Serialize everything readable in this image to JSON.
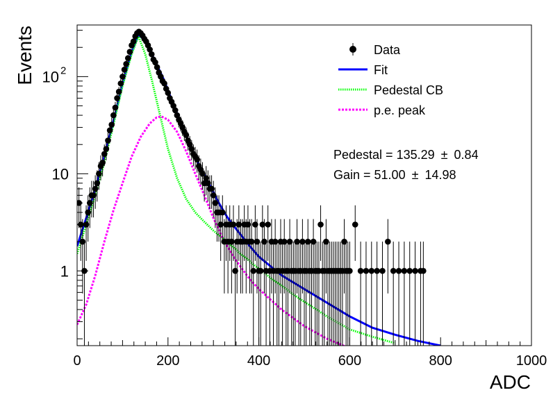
{
  "chart_data": {
    "type": "scatter",
    "title": "",
    "xlabel": "ADC",
    "ylabel": "Events",
    "xlim": [
      0,
      1000
    ],
    "ylim": [
      0.17,
      340
    ],
    "yscale": "log",
    "grid": false,
    "legend_position": "top-right",
    "x_ticks": [
      {
        "value": 0,
        "label": "0"
      },
      {
        "value": 200,
        "label": "200"
      },
      {
        "value": 400,
        "label": "400"
      },
      {
        "value": 600,
        "label": "600"
      },
      {
        "value": 800,
        "label": "800"
      },
      {
        "value": 1000,
        "label": "1000"
      }
    ],
    "y_ticks": [
      {
        "value": 1,
        "label": "1"
      },
      {
        "value": 10,
        "label": "10"
      },
      {
        "value": 100,
        "label": "10",
        "sup": "2"
      }
    ],
    "legend": [
      {
        "label": "Data",
        "marker": "point-errorbar",
        "color": "#000000"
      },
      {
        "label": "Fit",
        "marker": "solid-line",
        "color": "#0000ff"
      },
      {
        "label": "Pedestal CB",
        "marker": "dotted-line",
        "color": "#00ff00"
      },
      {
        "label": "p.e. peak",
        "marker": "dashed-line",
        "color": "#ff00ff"
      }
    ],
    "annotations": [
      {
        "text": "Pedestal = 135.29",
        "pm": "±",
        "value": "0.84"
      },
      {
        "text": "Gain = 51.00",
        "pm": "±",
        "value": "14.98"
      }
    ],
    "series": [
      {
        "name": "Data",
        "style": "points",
        "color": "#000000",
        "points": [
          [
            4,
            5
          ],
          [
            8,
            3
          ],
          [
            12,
            2
          ],
          [
            16,
            1
          ],
          [
            20,
            3
          ],
          [
            24,
            4
          ],
          [
            28,
            5
          ],
          [
            32,
            6
          ],
          [
            36,
            6
          ],
          [
            40,
            7
          ],
          [
            44,
            8
          ],
          [
            48,
            10
          ],
          [
            52,
            12
          ],
          [
            56,
            13
          ],
          [
            60,
            16
          ],
          [
            64,
            18
          ],
          [
            68,
            22
          ],
          [
            72,
            28
          ],
          [
            76,
            32
          ],
          [
            80,
            40
          ],
          [
            84,
            48
          ],
          [
            88,
            60
          ],
          [
            92,
            70
          ],
          [
            96,
            85
          ],
          [
            100,
            100
          ],
          [
            104,
            118
          ],
          [
            108,
            135
          ],
          [
            112,
            155
          ],
          [
            116,
            180
          ],
          [
            120,
            210
          ],
          [
            124,
            230
          ],
          [
            128,
            260
          ],
          [
            132,
            280
          ],
          [
            136,
            290
          ],
          [
            140,
            280
          ],
          [
            144,
            265
          ],
          [
            148,
            245
          ],
          [
            152,
            230
          ],
          [
            156,
            210
          ],
          [
            160,
            190
          ],
          [
            164,
            170
          ],
          [
            168,
            150
          ],
          [
            172,
            140
          ],
          [
            176,
            125
          ],
          [
            180,
            110
          ],
          [
            184,
            100
          ],
          [
            188,
            90
          ],
          [
            192,
            85
          ],
          [
            196,
            75
          ],
          [
            200,
            68
          ],
          [
            204,
            60
          ],
          [
            208,
            55
          ],
          [
            212,
            50
          ],
          [
            216,
            45
          ],
          [
            220,
            40
          ],
          [
            224,
            36
          ],
          [
            228,
            33
          ],
          [
            232,
            30
          ],
          [
            236,
            27
          ],
          [
            240,
            25
          ],
          [
            244,
            22
          ],
          [
            248,
            20
          ],
          [
            252,
            18
          ],
          [
            256,
            16
          ],
          [
            260,
            15
          ],
          [
            264,
            14
          ],
          [
            268,
            12
          ],
          [
            272,
            11
          ],
          [
            276,
            10
          ],
          [
            280,
            8
          ],
          [
            284,
            9
          ],
          [
            288,
            8
          ],
          [
            292,
            7
          ],
          [
            296,
            7
          ],
          [
            300,
            6
          ],
          [
            304,
            5
          ],
          [
            308,
            4
          ],
          [
            312,
            4
          ],
          [
            316,
            3
          ],
          [
            320,
            4
          ],
          [
            324,
            2
          ],
          [
            328,
            3
          ],
          [
            332,
            2
          ],
          [
            336,
            3
          ],
          [
            340,
            2
          ],
          [
            344,
            3
          ],
          [
            348,
            1
          ],
          [
            352,
            2
          ],
          [
            356,
            3
          ],
          [
            360,
            2
          ],
          [
            364,
            2
          ],
          [
            368,
            3
          ],
          [
            372,
            2
          ],
          [
            376,
            3
          ],
          [
            380,
            2
          ],
          [
            384,
            2
          ],
          [
            388,
            1
          ],
          [
            392,
            3
          ],
          [
            396,
            2
          ],
          [
            400,
            1
          ],
          [
            404,
            1
          ],
          [
            408,
            3
          ],
          [
            412,
            2
          ],
          [
            416,
            1
          ],
          [
            420,
            3
          ],
          [
            424,
            1
          ],
          [
            428,
            2
          ],
          [
            432,
            1
          ],
          [
            436,
            2
          ],
          [
            440,
            1
          ],
          [
            444,
            1
          ],
          [
            448,
            2
          ],
          [
            452,
            1
          ],
          [
            456,
            2
          ],
          [
            460,
            1
          ],
          [
            464,
            1
          ],
          [
            468,
            2
          ],
          [
            472,
            1
          ],
          [
            476,
            1
          ],
          [
            480,
            1
          ],
          [
            484,
            2
          ],
          [
            488,
            1
          ],
          [
            492,
            1
          ],
          [
            496,
            2
          ],
          [
            500,
            1
          ],
          [
            504,
            1
          ],
          [
            508,
            2
          ],
          [
            512,
            1
          ],
          [
            516,
            1
          ],
          [
            520,
            2
          ],
          [
            524,
            1
          ],
          [
            528,
            1
          ],
          [
            532,
            1
          ],
          [
            536,
            3
          ],
          [
            540,
            1
          ],
          [
            544,
            1
          ],
          [
            548,
            2
          ],
          [
            552,
            1
          ],
          [
            556,
            1
          ],
          [
            560,
            1
          ],
          [
            564,
            1
          ],
          [
            568,
            1
          ],
          [
            572,
            1
          ],
          [
            576,
            1
          ],
          [
            580,
            1
          ],
          [
            584,
            1
          ],
          [
            588,
            2
          ],
          [
            592,
            1
          ],
          [
            596,
            1
          ],
          [
            600,
            1
          ],
          [
            612,
            3
          ],
          [
            624,
            1
          ],
          [
            636,
            1
          ],
          [
            648,
            1
          ],
          [
            660,
            1
          ],
          [
            672,
            1
          ],
          [
            684,
            2
          ],
          [
            696,
            1
          ],
          [
            708,
            1
          ],
          [
            720,
            1
          ],
          [
            732,
            1
          ],
          [
            744,
            1
          ],
          [
            756,
            1
          ],
          [
            762,
            1
          ]
        ]
      },
      {
        "name": "Fit",
        "style": "solid",
        "color": "#0000ff",
        "points": [
          [
            0,
            1.8
          ],
          [
            20,
            3.5
          ],
          [
            40,
            7
          ],
          [
            60,
            15
          ],
          [
            80,
            35
          ],
          [
            100,
            85
          ],
          [
            120,
            180
          ],
          [
            135,
            270
          ],
          [
            150,
            235
          ],
          [
            170,
            150
          ],
          [
            190,
            95
          ],
          [
            210,
            55
          ],
          [
            230,
            32
          ],
          [
            250,
            19
          ],
          [
            270,
            12
          ],
          [
            290,
            8
          ],
          [
            310,
            5.2
          ],
          [
            330,
            3.6
          ],
          [
            350,
            2.7
          ],
          [
            380,
            1.8
          ],
          [
            400,
            1.4
          ],
          [
            450,
            0.9
          ],
          [
            500,
            0.65
          ],
          [
            550,
            0.47
          ],
          [
            600,
            0.34
          ],
          [
            650,
            0.26
          ],
          [
            700,
            0.22
          ],
          [
            750,
            0.19
          ],
          [
            800,
            0.17
          ]
        ]
      },
      {
        "name": "Pedestal CB",
        "style": "dotted",
        "color": "#00ff00",
        "points": [
          [
            0,
            1.5
          ],
          [
            20,
            3
          ],
          [
            40,
            6
          ],
          [
            60,
            13
          ],
          [
            80,
            32
          ],
          [
            100,
            80
          ],
          [
            120,
            170
          ],
          [
            135,
            260
          ],
          [
            150,
            170
          ],
          [
            165,
            90
          ],
          [
            180,
            45
          ],
          [
            200,
            18
          ],
          [
            220,
            9
          ],
          [
            240,
            5.5
          ],
          [
            260,
            4
          ],
          [
            280,
            3.2
          ],
          [
            300,
            2.6
          ],
          [
            330,
            2
          ],
          [
            360,
            1.5
          ],
          [
            400,
            1.05
          ],
          [
            450,
            0.7
          ],
          [
            500,
            0.48
          ],
          [
            550,
            0.34
          ],
          [
            600,
            0.25
          ],
          [
            650,
            0.21
          ],
          [
            700,
            0.18
          ]
        ]
      },
      {
        "name": "p.e. peak",
        "style": "dashed",
        "color": "#ff00ff",
        "points": [
          [
            0,
            0.28
          ],
          [
            20,
            0.45
          ],
          [
            40,
            0.9
          ],
          [
            60,
            2
          ],
          [
            80,
            4.2
          ],
          [
            100,
            8
          ],
          [
            120,
            15
          ],
          [
            140,
            24
          ],
          [
            160,
            33
          ],
          [
            175,
            38
          ],
          [
            185,
            39
          ],
          [
            200,
            36
          ],
          [
            220,
            27
          ],
          [
            240,
            17
          ],
          [
            260,
            10
          ],
          [
            280,
            6
          ],
          [
            300,
            3.5
          ],
          [
            320,
            2.2
          ],
          [
            340,
            1.5
          ],
          [
            360,
            1.1
          ],
          [
            380,
            0.82
          ],
          [
            400,
            0.65
          ],
          [
            450,
            0.4
          ],
          [
            500,
            0.27
          ],
          [
            550,
            0.2
          ],
          [
            600,
            0.16
          ]
        ]
      }
    ]
  }
}
